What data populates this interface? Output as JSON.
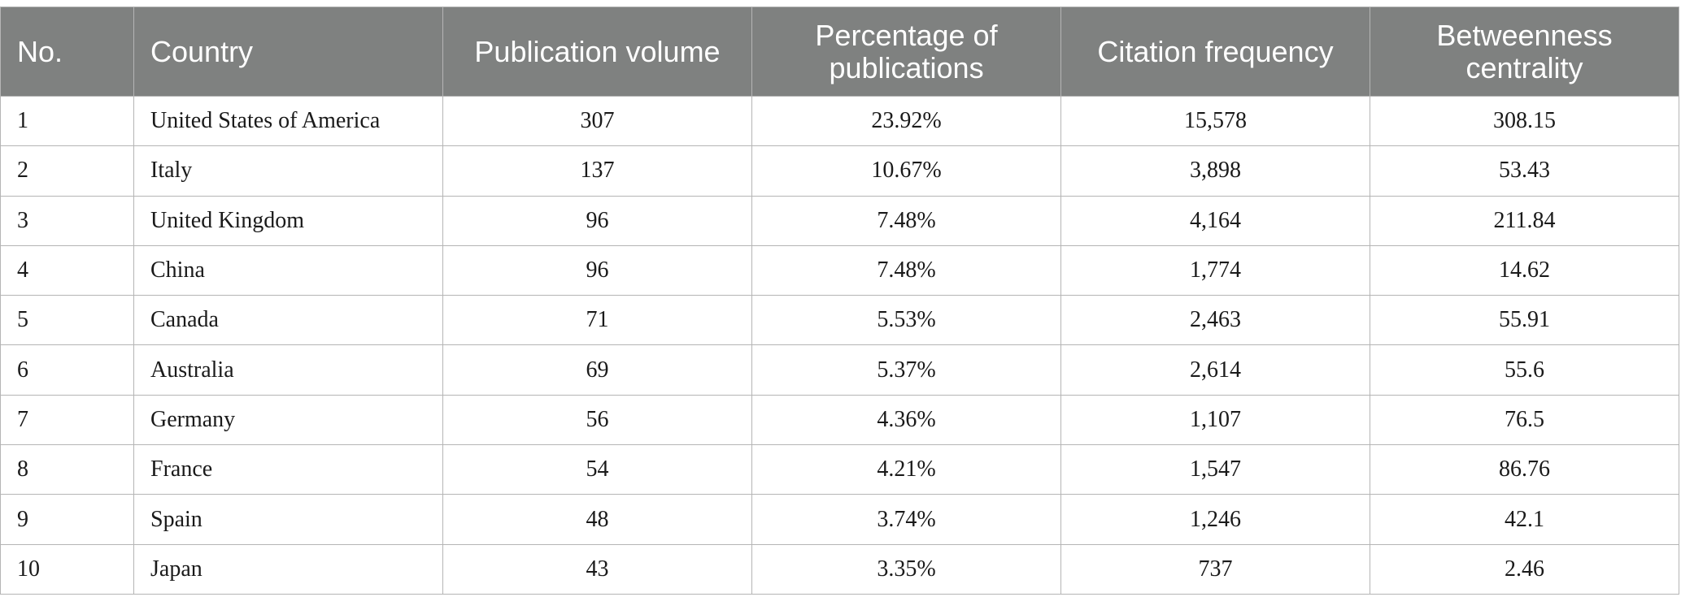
{
  "table": {
    "headers": [
      "No.",
      "Country",
      "Publication volume",
      "Percentage of publications",
      "Citation frequency",
      "Betweenness centrality"
    ],
    "rows": [
      [
        "1",
        "United States of America",
        "307",
        "23.92%",
        "15,578",
        "308.15"
      ],
      [
        "2",
        "Italy",
        "137",
        "10.67%",
        "3,898",
        "53.43"
      ],
      [
        "3",
        "United Kingdom",
        "96",
        "7.48%",
        "4,164",
        "211.84"
      ],
      [
        "4",
        "China",
        "96",
        "7.48%",
        "1,774",
        "14.62"
      ],
      [
        "5",
        "Canada",
        "71",
        "5.53%",
        "2,463",
        "55.91"
      ],
      [
        "6",
        "Australia",
        "69",
        "5.37%",
        "2,614",
        "55.6"
      ],
      [
        "7",
        "Germany",
        "56",
        "4.36%",
        "1,107",
        "76.5"
      ],
      [
        "8",
        "France",
        "54",
        "4.21%",
        "1,547",
        "86.76"
      ],
      [
        "9",
        "Spain",
        "48",
        "3.74%",
        "1,246",
        "42.1"
      ],
      [
        "10",
        "Japan",
        "43",
        "3.35%",
        "737",
        "2.46"
      ]
    ]
  },
  "colors": {
    "header_background": "#7f8180",
    "header_text": "#ffffff",
    "border": "#b5b5b5"
  }
}
